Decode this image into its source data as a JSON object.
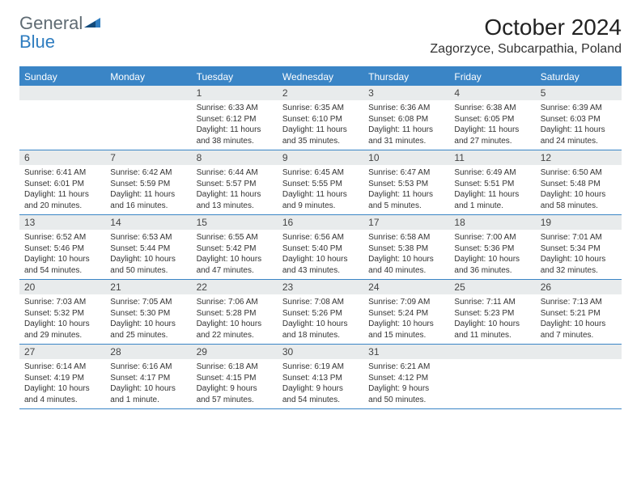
{
  "brand": {
    "word1": "General",
    "word2": "Blue"
  },
  "title": "October 2024",
  "location": "Zagorzyce, Subcarpathia, Poland",
  "colors": {
    "header_bg": "#3a85c6",
    "header_text": "#ffffff",
    "daynum_bg": "#e8ebec",
    "logo_gray": "#5f6b73",
    "logo_blue": "#2f7dc0"
  },
  "day_labels": [
    "Sunday",
    "Monday",
    "Tuesday",
    "Wednesday",
    "Thursday",
    "Friday",
    "Saturday"
  ],
  "weeks": [
    [
      null,
      null,
      {
        "n": "1",
        "sr": "6:33 AM",
        "ss": "6:12 PM",
        "dl": "11 hours and 38 minutes."
      },
      {
        "n": "2",
        "sr": "6:35 AM",
        "ss": "6:10 PM",
        "dl": "11 hours and 35 minutes."
      },
      {
        "n": "3",
        "sr": "6:36 AM",
        "ss": "6:08 PM",
        "dl": "11 hours and 31 minutes."
      },
      {
        "n": "4",
        "sr": "6:38 AM",
        "ss": "6:05 PM",
        "dl": "11 hours and 27 minutes."
      },
      {
        "n": "5",
        "sr": "6:39 AM",
        "ss": "6:03 PM",
        "dl": "11 hours and 24 minutes."
      }
    ],
    [
      {
        "n": "6",
        "sr": "6:41 AM",
        "ss": "6:01 PM",
        "dl": "11 hours and 20 minutes."
      },
      {
        "n": "7",
        "sr": "6:42 AM",
        "ss": "5:59 PM",
        "dl": "11 hours and 16 minutes."
      },
      {
        "n": "8",
        "sr": "6:44 AM",
        "ss": "5:57 PM",
        "dl": "11 hours and 13 minutes."
      },
      {
        "n": "9",
        "sr": "6:45 AM",
        "ss": "5:55 PM",
        "dl": "11 hours and 9 minutes."
      },
      {
        "n": "10",
        "sr": "6:47 AM",
        "ss": "5:53 PM",
        "dl": "11 hours and 5 minutes."
      },
      {
        "n": "11",
        "sr": "6:49 AM",
        "ss": "5:51 PM",
        "dl": "11 hours and 1 minute."
      },
      {
        "n": "12",
        "sr": "6:50 AM",
        "ss": "5:48 PM",
        "dl": "10 hours and 58 minutes."
      }
    ],
    [
      {
        "n": "13",
        "sr": "6:52 AM",
        "ss": "5:46 PM",
        "dl": "10 hours and 54 minutes."
      },
      {
        "n": "14",
        "sr": "6:53 AM",
        "ss": "5:44 PM",
        "dl": "10 hours and 50 minutes."
      },
      {
        "n": "15",
        "sr": "6:55 AM",
        "ss": "5:42 PM",
        "dl": "10 hours and 47 minutes."
      },
      {
        "n": "16",
        "sr": "6:56 AM",
        "ss": "5:40 PM",
        "dl": "10 hours and 43 minutes."
      },
      {
        "n": "17",
        "sr": "6:58 AM",
        "ss": "5:38 PM",
        "dl": "10 hours and 40 minutes."
      },
      {
        "n": "18",
        "sr": "7:00 AM",
        "ss": "5:36 PM",
        "dl": "10 hours and 36 minutes."
      },
      {
        "n": "19",
        "sr": "7:01 AM",
        "ss": "5:34 PM",
        "dl": "10 hours and 32 minutes."
      }
    ],
    [
      {
        "n": "20",
        "sr": "7:03 AM",
        "ss": "5:32 PM",
        "dl": "10 hours and 29 minutes."
      },
      {
        "n": "21",
        "sr": "7:05 AM",
        "ss": "5:30 PM",
        "dl": "10 hours and 25 minutes."
      },
      {
        "n": "22",
        "sr": "7:06 AM",
        "ss": "5:28 PM",
        "dl": "10 hours and 22 minutes."
      },
      {
        "n": "23",
        "sr": "7:08 AM",
        "ss": "5:26 PM",
        "dl": "10 hours and 18 minutes."
      },
      {
        "n": "24",
        "sr": "7:09 AM",
        "ss": "5:24 PM",
        "dl": "10 hours and 15 minutes."
      },
      {
        "n": "25",
        "sr": "7:11 AM",
        "ss": "5:23 PM",
        "dl": "10 hours and 11 minutes."
      },
      {
        "n": "26",
        "sr": "7:13 AM",
        "ss": "5:21 PM",
        "dl": "10 hours and 7 minutes."
      }
    ],
    [
      {
        "n": "27",
        "sr": "6:14 AM",
        "ss": "4:19 PM",
        "dl": "10 hours and 4 minutes."
      },
      {
        "n": "28",
        "sr": "6:16 AM",
        "ss": "4:17 PM",
        "dl": "10 hours and 1 minute."
      },
      {
        "n": "29",
        "sr": "6:18 AM",
        "ss": "4:15 PM",
        "dl": "9 hours and 57 minutes."
      },
      {
        "n": "30",
        "sr": "6:19 AM",
        "ss": "4:13 PM",
        "dl": "9 hours and 54 minutes."
      },
      {
        "n": "31",
        "sr": "6:21 AM",
        "ss": "4:12 PM",
        "dl": "9 hours and 50 minutes."
      },
      null,
      null
    ]
  ],
  "labels": {
    "sunrise": "Sunrise:",
    "sunset": "Sunset:",
    "daylight": "Daylight:"
  }
}
